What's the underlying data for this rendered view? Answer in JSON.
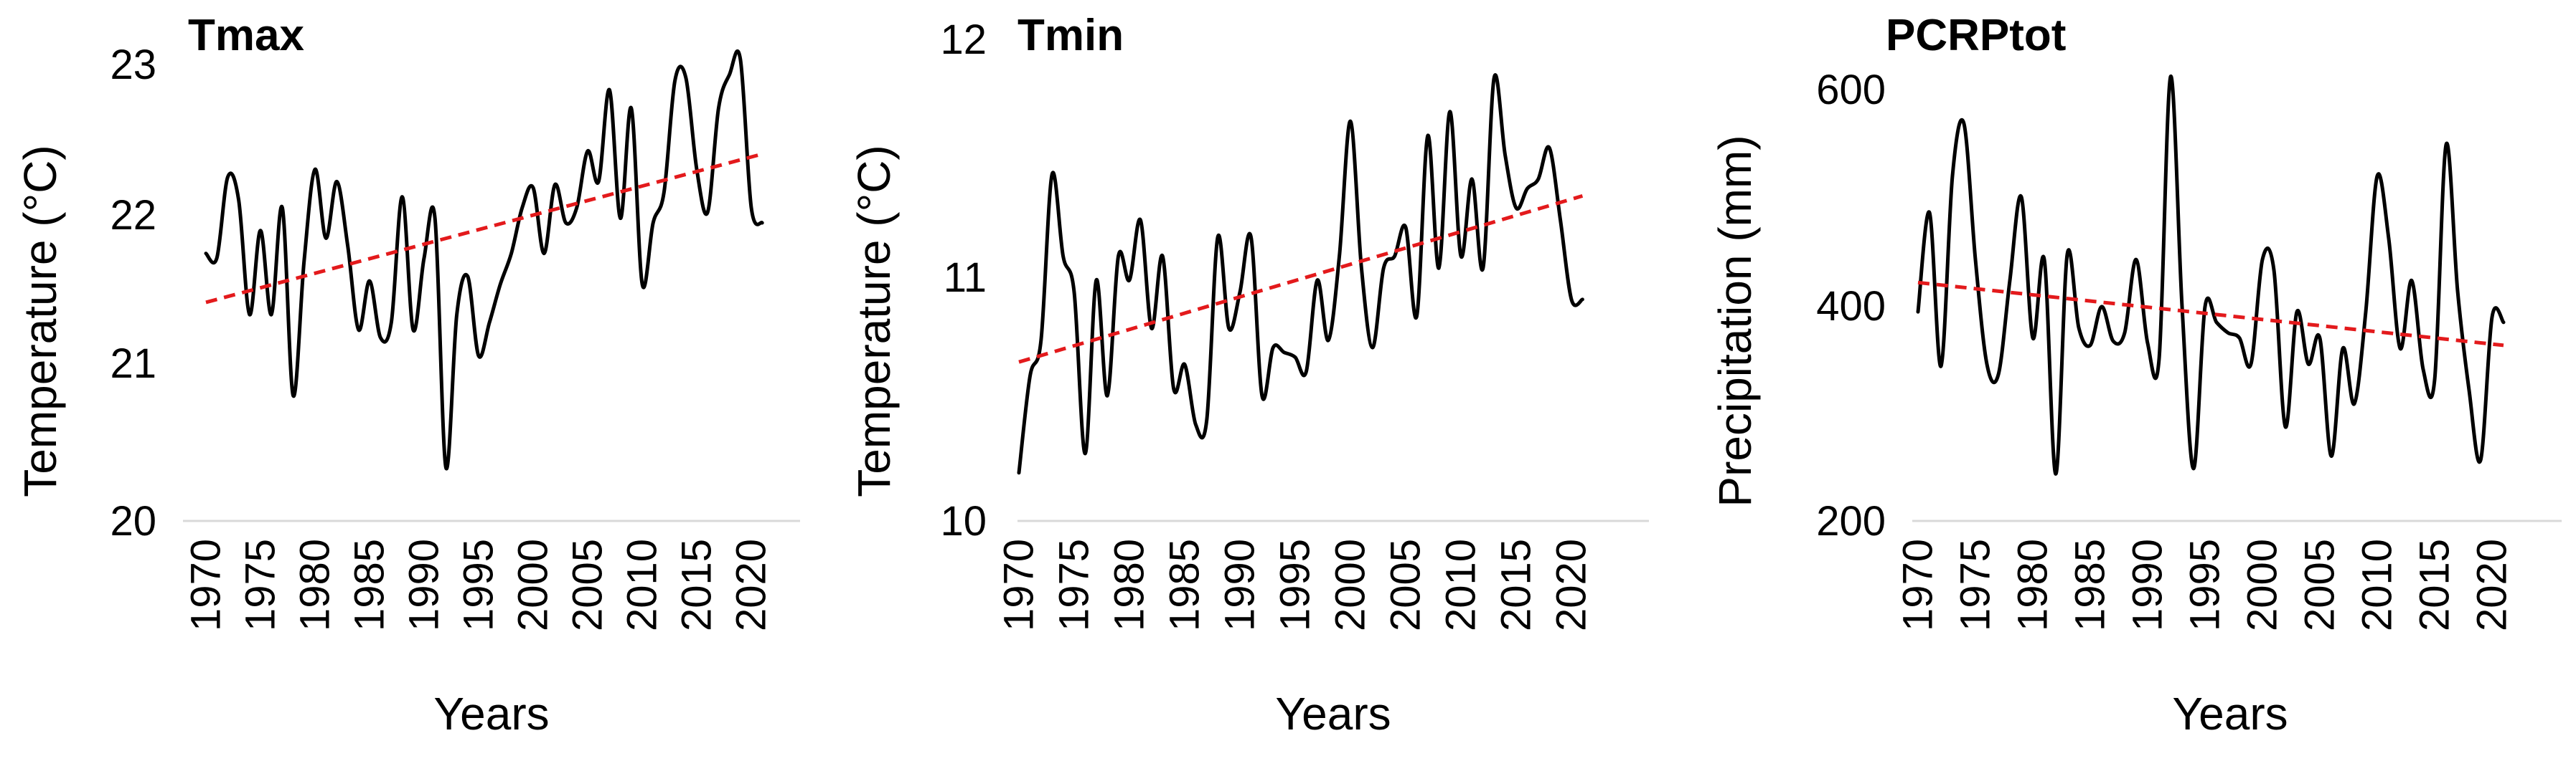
{
  "colors": {
    "observed_line": "#000000",
    "trend_line": "#e31a1c",
    "baseline": "#d9d9d9"
  },
  "chart_data": [
    {
      "type": "line",
      "title": "Tmax",
      "xlabel": "Years",
      "ylabel": "Temperature  (°C)",
      "ylim": [
        20,
        23
      ],
      "yticks": [
        "20",
        "21",
        "22",
        "23"
      ],
      "xlim": [
        1970,
        2021
      ],
      "xticks": [
        "1970",
        "1975",
        "1980",
        "1985",
        "1990",
        "1995",
        "2000",
        "2005",
        "2010",
        "2015",
        "2020"
      ],
      "grid": false,
      "legend": "none",
      "series": [
        {
          "style": "solid-black",
          "x": [
            1970,
            1971,
            1972,
            1973,
            1974,
            1975,
            1976,
            1977,
            1978,
            1979,
            1980,
            1981,
            1982,
            1983,
            1984,
            1985,
            1986,
            1987,
            1988,
            1989,
            1990,
            1991,
            1992,
            1993,
            1994,
            1995,
            1996,
            1997,
            1998,
            1999,
            2000,
            2001,
            2002,
            2003,
            2004,
            2005,
            2006,
            2007,
            2008,
            2009,
            2010,
            2011,
            2012,
            2013,
            2014,
            2015,
            2016,
            2017,
            2018,
            2019,
            2020,
            2021
          ],
          "y": [
            21.75,
            21.72,
            22.25,
            22.1,
            21.35,
            21.9,
            21.35,
            22.05,
            20.82,
            21.7,
            22.3,
            21.85,
            22.22,
            21.8,
            21.25,
            21.57,
            21.2,
            21.3,
            22.12,
            21.25,
            21.72,
            21.98,
            20.35,
            21.35,
            21.6,
            21.08,
            21.3,
            21.55,
            21.75,
            22.05,
            22.18,
            21.75,
            22.2,
            21.95,
            22.05,
            22.42,
            22.22,
            22.82,
            21.98,
            22.7,
            21.55,
            21.95,
            22.15,
            22.88,
            22.9,
            22.3,
            22.02,
            22.7,
            22.92,
            23.02,
            22.05,
            21.95
          ]
        },
        {
          "style": "dashed-red-trend",
          "x": [
            1970,
            2021
          ],
          "y": [
            21.43,
            22.4
          ]
        }
      ]
    },
    {
      "type": "line",
      "title": "Tmin",
      "xlabel": "Years",
      "ylabel": "Temperature  (°C)",
      "ylim": [
        10,
        12
      ],
      "yticks": [
        "10",
        "11",
        "12"
      ],
      "xlim": [
        1970,
        2021
      ],
      "xticks": [
        "1970",
        "1975",
        "1980",
        "1985",
        "1990",
        "1995",
        "2000",
        "2005",
        "2010",
        "2015",
        "2020"
      ],
      "grid": false,
      "legend": "none",
      "series": [
        {
          "style": "solid-black",
          "x": [
            1970,
            1971,
            1972,
            1973,
            1974,
            1975,
            1976,
            1977,
            1978,
            1979,
            1980,
            1981,
            1982,
            1983,
            1984,
            1985,
            1986,
            1987,
            1988,
            1989,
            1990,
            1991,
            1992,
            1993,
            1994,
            1995,
            1996,
            1997,
            1998,
            1999,
            2000,
            2001,
            2002,
            2003,
            2004,
            2005,
            2006,
            2007,
            2008,
            2009,
            2010,
            2011,
            2012,
            2013,
            2014,
            2015,
            2016,
            2017,
            2018,
            2019,
            2020,
            2021
          ],
          "y": [
            10.2,
            10.6,
            10.75,
            11.44,
            11.1,
            10.95,
            10.28,
            11.0,
            10.52,
            11.1,
            11.0,
            11.25,
            10.8,
            11.1,
            10.55,
            10.65,
            10.4,
            10.42,
            11.18,
            10.8,
            10.95,
            11.18,
            10.52,
            10.72,
            10.7,
            10.68,
            10.62,
            11.0,
            10.75,
            11.1,
            11.66,
            11.05,
            10.72,
            11.05,
            11.1,
            11.22,
            10.85,
            11.6,
            11.05,
            11.7,
            11.1,
            11.42,
            11.05,
            11.84,
            11.52,
            11.3,
            11.38,
            11.42,
            11.55,
            11.25,
            10.92,
            10.92
          ]
        },
        {
          "style": "dashed-red-trend",
          "x": [
            1970,
            2021
          ],
          "y": [
            10.66,
            11.35
          ]
        }
      ]
    },
    {
      "type": "line",
      "title": "PCRPtot",
      "xlabel": "Years",
      "ylabel": "Precipitation  (mm)",
      "ylim": [
        200,
        600
      ],
      "yticks": [
        "200",
        "400",
        "600"
      ],
      "ymax_plot": 640,
      "xlim": [
        1970,
        2021
      ],
      "xticks": [
        "1970",
        "1975",
        "1980",
        "1985",
        "1990",
        "1995",
        "2000",
        "2005",
        "2010",
        "2015",
        "2020"
      ],
      "grid": false,
      "legend": "none",
      "series": [
        {
          "style": "solid-black",
          "x": [
            1970,
            1971,
            1972,
            1973,
            1974,
            1975,
            1976,
            1977,
            1978,
            1979,
            1980,
            1981,
            1982,
            1983,
            1984,
            1985,
            1986,
            1987,
            1988,
            1989,
            1990,
            1991,
            1992,
            1993,
            1994,
            1995,
            1996,
            1997,
            1998,
            1999,
            2000,
            2001,
            2002,
            2003,
            2004,
            2005,
            2006,
            2007,
            2008,
            2009,
            2010,
            2011,
            2012,
            2013,
            2014,
            2015,
            2016,
            2017,
            2018,
            2019,
            2020,
            2021
          ],
          "y": [
            400,
            495,
            348,
            530,
            580,
            450,
            350,
            340,
            430,
            510,
            375,
            450,
            245,
            455,
            385,
            368,
            405,
            372,
            380,
            450,
            370,
            355,
            625,
            405,
            250,
            405,
            390,
            380,
            375,
            350,
            450,
            440,
            290,
            400,
            350,
            375,
            262,
            365,
            312,
            400,
            530,
            470,
            365,
            430,
            345,
            335,
            560,
            420,
            325,
            258,
            395,
            390
          ]
        },
        {
          "style": "dashed-red-trend",
          "x": [
            1970,
            2021
          ],
          "y": [
            428,
            368
          ]
        }
      ]
    }
  ]
}
